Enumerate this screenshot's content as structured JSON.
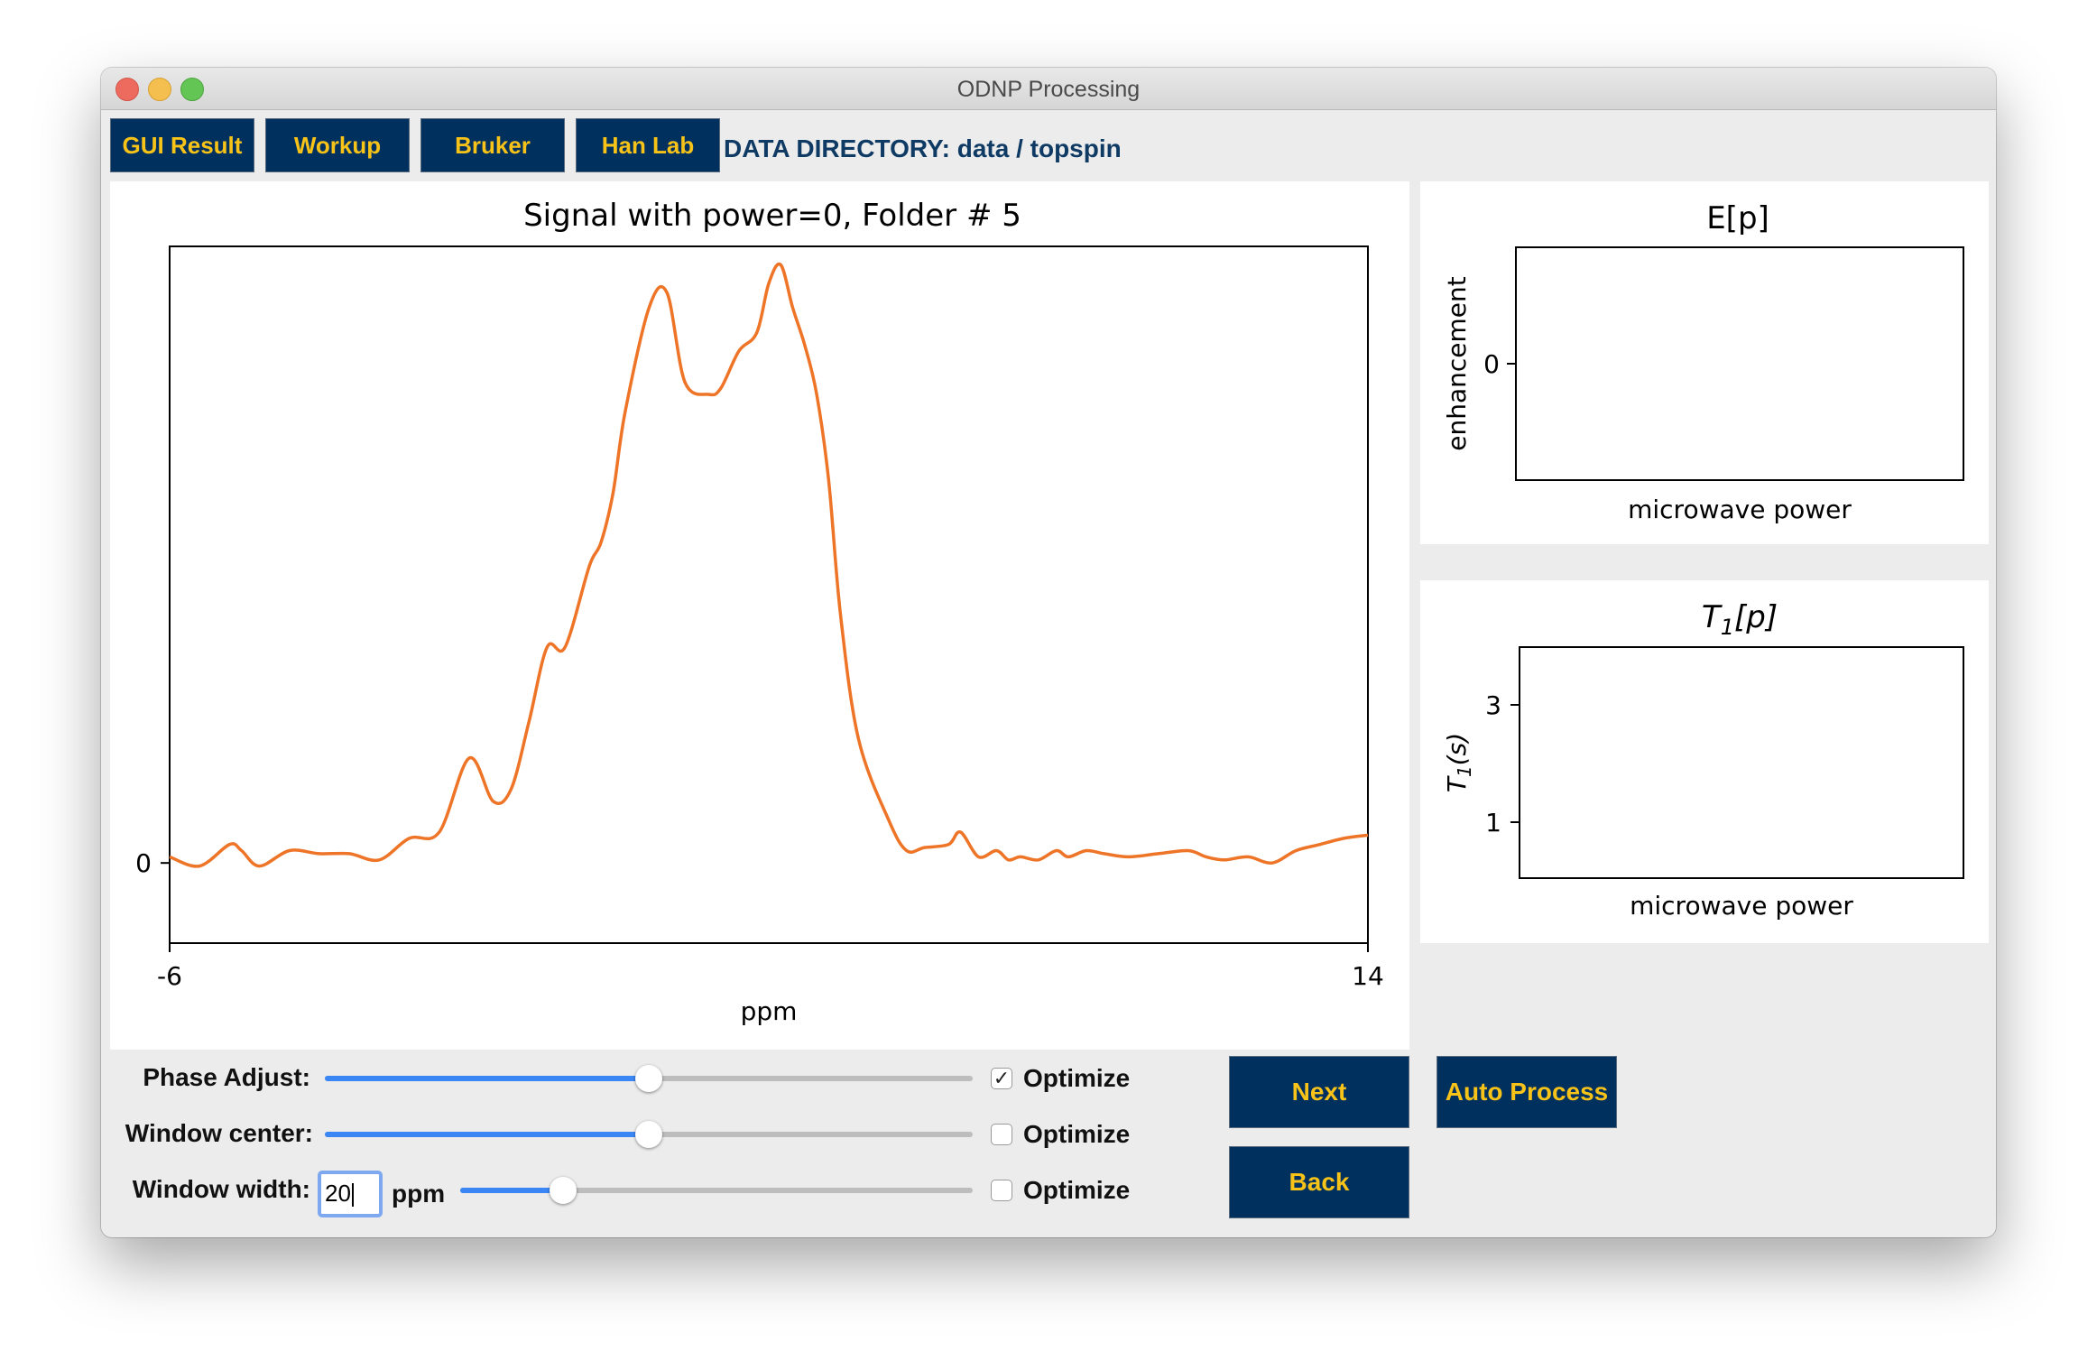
{
  "window": {
    "title": "ODNP Processing"
  },
  "nav": {
    "buttons": [
      "GUI Result",
      "Workup",
      "Bruker",
      "Han Lab"
    ],
    "data_directory": "DATA DIRECTORY: data / topspin"
  },
  "main_plot": {
    "title": "Signal with power=0, Folder # 5",
    "xlabel": "ppm",
    "x_ticks": [
      "-6",
      "14"
    ],
    "y_ticks": [
      "0"
    ]
  },
  "ep_plot": {
    "title": "E[p]",
    "xlabel": "microwave power",
    "ylabel": "enhancement",
    "y_ticks": [
      "0"
    ]
  },
  "t1_plot": {
    "title_base": "T",
    "title_sub": "1",
    "title_tail": "[p]",
    "xlabel": "microwave power",
    "ylabel_base": "T",
    "ylabel_sub": "1",
    "ylabel_tail": "(s)",
    "y_ticks": [
      "3",
      "1"
    ]
  },
  "controls": {
    "phase_adjust": {
      "label": "Phase Adjust:",
      "value": 0.5,
      "optimize_label": "Optimize",
      "optimize_checked": "✓"
    },
    "window_center": {
      "label": "Window center:",
      "value": 0.5,
      "optimize_label": "Optimize"
    },
    "window_width": {
      "label": "Window width:",
      "input_value": "20",
      "unit": "ppm",
      "value": 0.2,
      "optimize_label": "Optimize"
    }
  },
  "buttons": {
    "next": "Next",
    "back": "Back",
    "auto_process": "Auto Process"
  },
  "colors": {
    "accent_blue": "#00305e",
    "accent_gold": "#f7c319",
    "trace": "#ee7427",
    "slider_fill": "#3b86f5"
  },
  "chart_data": {
    "type": "line",
    "title": "Signal with power=0, Folder # 5",
    "xlabel": "ppm",
    "ylabel": "",
    "xlim": [
      -6,
      14
    ],
    "ylim": [
      -0.13,
      1.0
    ],
    "y_ticks": [
      0
    ],
    "series": [
      {
        "x": [
          -6.0,
          -5.5,
          -5.0,
          -4.8,
          -4.5,
          -4.0,
          -3.5,
          -3.0,
          -2.5,
          -2.0,
          -1.5,
          -1.0,
          -0.6,
          -0.3,
          0.0,
          0.3,
          0.6,
          1.0,
          1.2,
          1.4,
          1.6,
          2.0,
          2.3,
          2.6,
          3.0,
          3.2,
          3.5,
          3.8,
          4.0,
          4.2,
          4.4,
          4.6,
          4.8,
          5.0,
          5.2,
          5.5,
          6.0,
          6.3,
          6.6,
          7.0,
          7.2,
          7.5,
          7.8,
          8.0,
          8.2,
          8.5,
          8.8,
          9.0,
          9.3,
          9.6,
          10.0,
          10.5,
          11.0,
          11.3,
          11.6,
          12.0,
          12.4,
          12.8,
          13.2,
          13.6,
          14.0
        ],
        "y": [
          0.01,
          -0.005,
          0.03,
          0.02,
          -0.005,
          0.02,
          0.015,
          0.015,
          0.005,
          0.04,
          0.05,
          0.17,
          0.1,
          0.12,
          0.23,
          0.35,
          0.35,
          0.48,
          0.52,
          0.6,
          0.73,
          0.9,
          0.925,
          0.78,
          0.76,
          0.77,
          0.83,
          0.86,
          0.94,
          0.97,
          0.9,
          0.84,
          0.76,
          0.62,
          0.4,
          0.2,
          0.07,
          0.02,
          0.025,
          0.03,
          0.05,
          0.01,
          0.02,
          0.005,
          0.01,
          0.005,
          0.02,
          0.01,
          0.02,
          0.015,
          0.01,
          0.015,
          0.02,
          0.01,
          0.005,
          0.01,
          0.0,
          0.02,
          0.03,
          0.04,
          0.045
        ]
      }
    ]
  }
}
